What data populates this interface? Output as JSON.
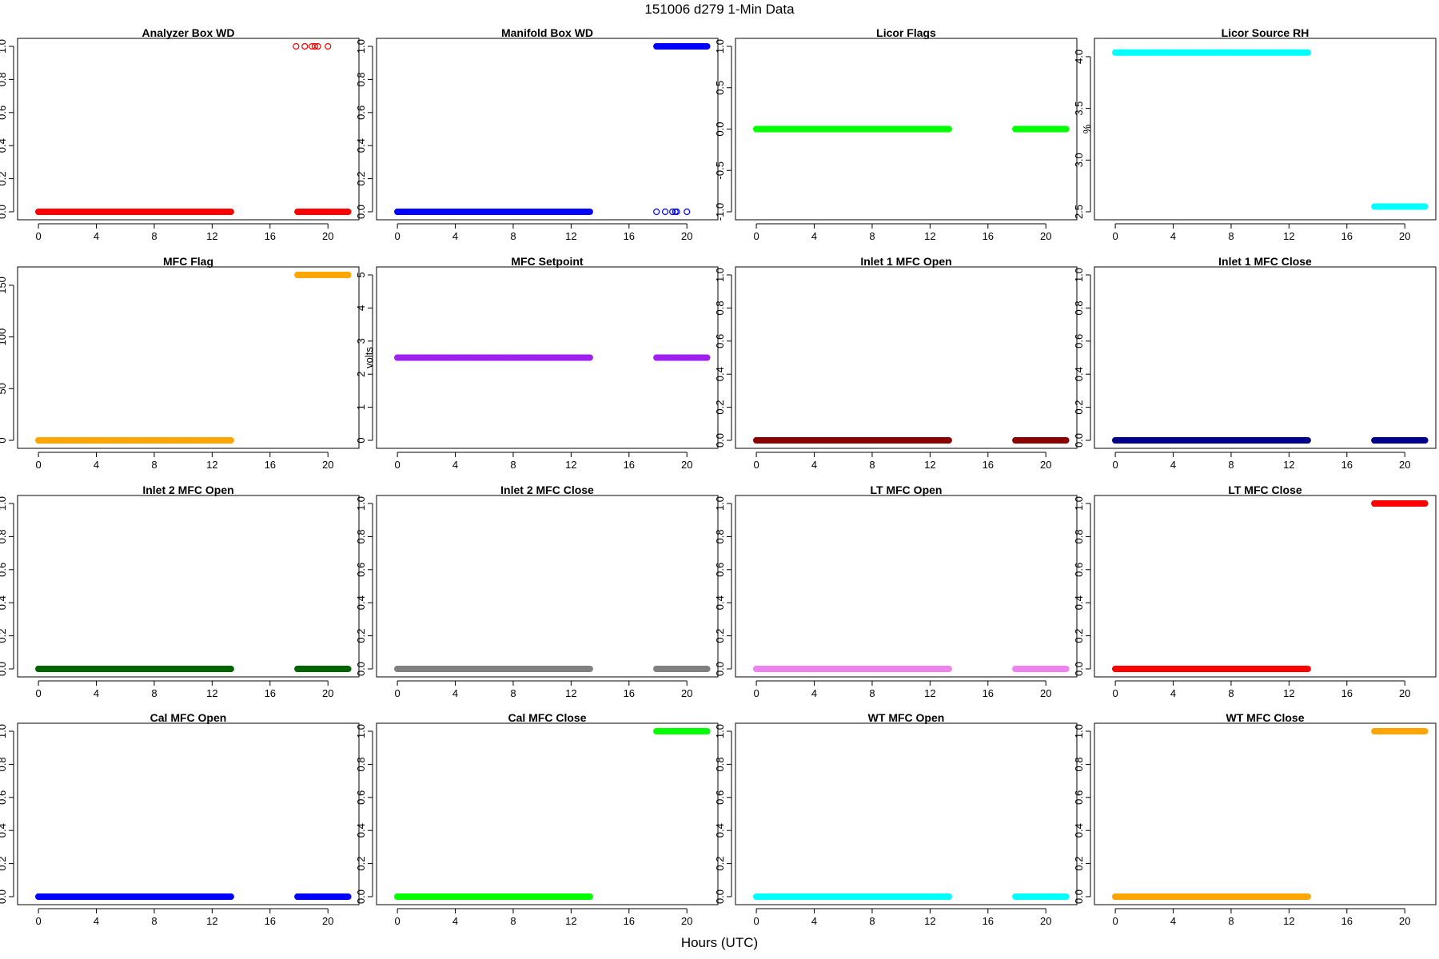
{
  "page": {
    "title": "151006   d279   1-Min Data",
    "xlabel": "Hours (UTC)"
  },
  "chart_data": [
    {
      "type": "scatter",
      "title": "Analyzer Box WD",
      "ylabel": "",
      "color": "#ff0000",
      "xlim": [
        -1,
        21.7
      ],
      "ylim": [
        0,
        1
      ],
      "xticks": [
        0,
        4,
        8,
        12,
        16,
        20
      ],
      "yticks": [
        0.0,
        0.2,
        0.4,
        0.6,
        0.8,
        1.0
      ],
      "segments": [
        {
          "x_start": 0,
          "x_end": 13.3,
          "y": 0
        },
        {
          "x_start": 17.9,
          "x_end": 21.4,
          "y": 0
        }
      ],
      "points": [
        [
          17.8,
          1
        ],
        [
          18.4,
          1
        ],
        [
          18.9,
          1
        ],
        [
          19.1,
          1
        ],
        [
          19.3,
          1
        ],
        [
          20.0,
          1
        ]
      ]
    },
    {
      "type": "scatter",
      "title": "Manifold Box WD",
      "ylabel": "",
      "color": "#0000ff",
      "xlim": [
        -1,
        21.7
      ],
      "ylim": [
        0,
        1
      ],
      "xticks": [
        0,
        4,
        8,
        12,
        16,
        20
      ],
      "yticks": [
        0.0,
        0.2,
        0.4,
        0.6,
        0.8,
        1.0
      ],
      "segments": [
        {
          "x_start": 0,
          "x_end": 13.3,
          "y": 0
        },
        {
          "x_start": 17.9,
          "x_end": 21.4,
          "y": 1
        }
      ],
      "points": [
        [
          17.9,
          0
        ],
        [
          18.5,
          0
        ],
        [
          19.0,
          0
        ],
        [
          19.2,
          0
        ],
        [
          19.3,
          0
        ],
        [
          20.0,
          0
        ]
      ]
    },
    {
      "type": "scatter",
      "title": "Licor Flags",
      "ylabel": "",
      "color": "#00ff00",
      "xlim": [
        -1,
        21.7
      ],
      "ylim": [
        -1,
        1
      ],
      "xticks": [
        0,
        4,
        8,
        12,
        16,
        20
      ],
      "yticks": [
        -1.0,
        -0.5,
        0.0,
        0.5,
        1.0
      ],
      "segments": [
        {
          "x_start": 0,
          "x_end": 13.3,
          "y": 0
        },
        {
          "x_start": 17.9,
          "x_end": 21.4,
          "y": 0
        }
      ],
      "points": []
    },
    {
      "type": "scatter",
      "title": "Licor Source RH",
      "ylabel": "%",
      "color": "#00ffff",
      "xlim": [
        -1,
        21.7
      ],
      "ylim": [
        2.5,
        4.1
      ],
      "xticks": [
        0,
        4,
        8,
        12,
        16,
        20
      ],
      "yticks": [
        2.5,
        3.0,
        3.5,
        4.0
      ],
      "segments": [
        {
          "x_start": 0,
          "x_end": 13.3,
          "y": 4.04
        },
        {
          "x_start": 17.9,
          "x_end": 21.4,
          "y": 2.55
        }
      ],
      "points": []
    },
    {
      "type": "scatter",
      "title": "MFC Flag",
      "ylabel": "",
      "color": "#ffa500",
      "xlim": [
        -1,
        21.7
      ],
      "ylim": [
        0,
        160
      ],
      "xticks": [
        0,
        4,
        8,
        12,
        16,
        20
      ],
      "yticks": [
        0,
        50,
        100,
        150
      ],
      "segments": [
        {
          "x_start": 0,
          "x_end": 13.3,
          "y": 0
        },
        {
          "x_start": 17.9,
          "x_end": 21.4,
          "y": 160
        }
      ],
      "points": []
    },
    {
      "type": "scatter",
      "title": "MFC Setpoint",
      "ylabel": "volts",
      "color": "#a020f0",
      "xlim": [
        -1,
        21.7
      ],
      "ylim": [
        0,
        5
      ],
      "xticks": [
        0,
        4,
        8,
        12,
        16,
        20
      ],
      "yticks": [
        0,
        1,
        2,
        3,
        4,
        5
      ],
      "segments": [
        {
          "x_start": 0,
          "x_end": 13.3,
          "y": 2.5
        },
        {
          "x_start": 17.9,
          "x_end": 21.4,
          "y": 2.5
        }
      ],
      "points": []
    },
    {
      "type": "scatter",
      "title": "Inlet 1 MFC Open",
      "ylabel": "",
      "color": "#8b0000",
      "xlim": [
        -1,
        21.7
      ],
      "ylim": [
        0,
        1
      ],
      "xticks": [
        0,
        4,
        8,
        12,
        16,
        20
      ],
      "yticks": [
        0.0,
        0.2,
        0.4,
        0.6,
        0.8,
        1.0
      ],
      "segments": [
        {
          "x_start": 0,
          "x_end": 13.3,
          "y": 0
        },
        {
          "x_start": 17.9,
          "x_end": 21.4,
          "y": 0
        }
      ],
      "points": []
    },
    {
      "type": "scatter",
      "title": "Inlet 1 MFC Close",
      "ylabel": "",
      "color": "#00008b",
      "xlim": [
        -1,
        21.7
      ],
      "ylim": [
        0,
        1
      ],
      "xticks": [
        0,
        4,
        8,
        12,
        16,
        20
      ],
      "yticks": [
        0.0,
        0.2,
        0.4,
        0.6,
        0.8,
        1.0
      ],
      "segments": [
        {
          "x_start": 0,
          "x_end": 13.3,
          "y": 0
        },
        {
          "x_start": 17.9,
          "x_end": 21.4,
          "y": 0
        }
      ],
      "points": []
    },
    {
      "type": "scatter",
      "title": "Inlet 2 MFC Open",
      "ylabel": "",
      "color": "#006400",
      "xlim": [
        -1,
        21.7
      ],
      "ylim": [
        0,
        1
      ],
      "xticks": [
        0,
        4,
        8,
        12,
        16,
        20
      ],
      "yticks": [
        0.0,
        0.2,
        0.4,
        0.6,
        0.8,
        1.0
      ],
      "segments": [
        {
          "x_start": 0,
          "x_end": 13.3,
          "y": 0
        },
        {
          "x_start": 17.9,
          "x_end": 21.4,
          "y": 0
        }
      ],
      "points": []
    },
    {
      "type": "scatter",
      "title": "Inlet 2 MFC Close",
      "ylabel": "",
      "color": "#808080",
      "xlim": [
        -1,
        21.7
      ],
      "ylim": [
        0,
        1
      ],
      "xticks": [
        0,
        4,
        8,
        12,
        16,
        20
      ],
      "yticks": [
        0.0,
        0.2,
        0.4,
        0.6,
        0.8,
        1.0
      ],
      "segments": [
        {
          "x_start": 0,
          "x_end": 13.3,
          "y": 0
        },
        {
          "x_start": 17.9,
          "x_end": 21.4,
          "y": 0
        }
      ],
      "points": []
    },
    {
      "type": "scatter",
      "title": "LT MFC Open",
      "ylabel": "",
      "color": "#ee82ee",
      "xlim": [
        -1,
        21.7
      ],
      "ylim": [
        0,
        1
      ],
      "xticks": [
        0,
        4,
        8,
        12,
        16,
        20
      ],
      "yticks": [
        0.0,
        0.2,
        0.4,
        0.6,
        0.8,
        1.0
      ],
      "segments": [
        {
          "x_start": 0,
          "x_end": 13.3,
          "y": 0
        },
        {
          "x_start": 17.9,
          "x_end": 21.4,
          "y": 0
        }
      ],
      "points": []
    },
    {
      "type": "scatter",
      "title": "LT MFC Close",
      "ylabel": "",
      "color": "#ff0000",
      "xlim": [
        -1,
        21.7
      ],
      "ylim": [
        0,
        1
      ],
      "xticks": [
        0,
        4,
        8,
        12,
        16,
        20
      ],
      "yticks": [
        0.0,
        0.2,
        0.4,
        0.6,
        0.8,
        1.0
      ],
      "segments": [
        {
          "x_start": 0,
          "x_end": 13.3,
          "y": 0
        },
        {
          "x_start": 17.9,
          "x_end": 21.4,
          "y": 1
        }
      ],
      "points": []
    },
    {
      "type": "scatter",
      "title": "Cal MFC Open",
      "ylabel": "",
      "color": "#0000ff",
      "xlim": [
        -1,
        21.7
      ],
      "ylim": [
        0,
        1
      ],
      "xticks": [
        0,
        4,
        8,
        12,
        16,
        20
      ],
      "yticks": [
        0.0,
        0.2,
        0.4,
        0.6,
        0.8,
        1.0
      ],
      "segments": [
        {
          "x_start": 0,
          "x_end": 13.3,
          "y": 0
        },
        {
          "x_start": 17.9,
          "x_end": 21.4,
          "y": 0
        }
      ],
      "points": []
    },
    {
      "type": "scatter",
      "title": "Cal MFC Close",
      "ylabel": "",
      "color": "#00ff00",
      "xlim": [
        -1,
        21.7
      ],
      "ylim": [
        0,
        1
      ],
      "xticks": [
        0,
        4,
        8,
        12,
        16,
        20
      ],
      "yticks": [
        0.0,
        0.2,
        0.4,
        0.6,
        0.8,
        1.0
      ],
      "segments": [
        {
          "x_start": 0,
          "x_end": 13.3,
          "y": 0
        },
        {
          "x_start": 17.9,
          "x_end": 21.4,
          "y": 1
        }
      ],
      "points": []
    },
    {
      "type": "scatter",
      "title": "WT MFC Open",
      "ylabel": "",
      "color": "#00ffff",
      "xlim": [
        -1,
        21.7
      ],
      "ylim": [
        0,
        1
      ],
      "xticks": [
        0,
        4,
        8,
        12,
        16,
        20
      ],
      "yticks": [
        0.0,
        0.2,
        0.4,
        0.6,
        0.8,
        1.0
      ],
      "segments": [
        {
          "x_start": 0,
          "x_end": 13.3,
          "y": 0
        },
        {
          "x_start": 17.9,
          "x_end": 21.4,
          "y": 0
        }
      ],
      "points": []
    },
    {
      "type": "scatter",
      "title": "WT MFC Close",
      "ylabel": "",
      "color": "#ffa500",
      "xlim": [
        -1,
        21.7
      ],
      "ylim": [
        0,
        1
      ],
      "xticks": [
        0,
        4,
        8,
        12,
        16,
        20
      ],
      "yticks": [
        0.0,
        0.2,
        0.4,
        0.6,
        0.8,
        1.0
      ],
      "segments": [
        {
          "x_start": 0,
          "x_end": 13.3,
          "y": 0
        },
        {
          "x_start": 17.9,
          "x_end": 21.4,
          "y": 1
        }
      ],
      "points": []
    }
  ]
}
